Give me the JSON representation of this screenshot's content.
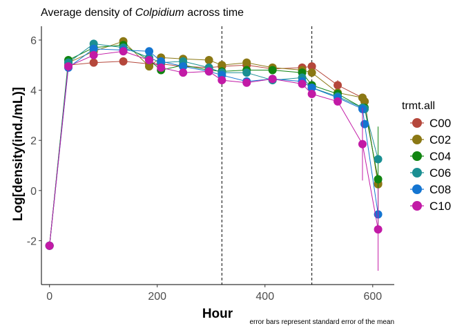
{
  "chart_data": {
    "type": "line",
    "title_parts": [
      {
        "text": "Average density of ",
        "style": "normal"
      },
      {
        "text": "Colpidium",
        "style": "italic"
      },
      {
        "text": " across time",
        "style": "normal"
      }
    ],
    "xlabel": "Hour",
    "ylabel": "Log[density(ind./mL)]",
    "caption": "error bars represent standard error of the mean",
    "xlim": [
      -15,
      640
    ],
    "ylim": [
      -3.75,
      6.55
    ],
    "xticks": [
      0,
      200,
      400,
      600
    ],
    "yticks": [
      -2,
      0,
      2,
      4,
      6
    ],
    "ytick_labels": [
      "-2",
      "0",
      "2",
      "4",
      "6"
    ],
    "grid": false,
    "vlines": [
      320,
      487
    ],
    "legend": {
      "title": "trmt.all",
      "position": "right"
    },
    "x": [
      0,
      35,
      82,
      137,
      185,
      207,
      248,
      296,
      320,
      366,
      414,
      469,
      487,
      535,
      581,
      585,
      610
    ],
    "series": [
      {
        "name": "C00",
        "color": "#b5473b",
        "values": [
          -2.2,
          5.0,
          5.1,
          5.15,
          5.05,
          5.05,
          4.95,
          4.9,
          4.95,
          5.0,
          4.85,
          4.9,
          4.95,
          4.2,
          3.7,
          3.55,
          0.28
        ],
        "err": [
          null,
          null,
          null,
          null,
          null,
          null,
          null,
          null,
          null,
          null,
          null,
          null,
          null,
          0.2,
          0.15,
          null,
          null
        ]
      },
      {
        "name": "C02",
        "color": "#8b7814",
        "values": [
          -2.2,
          5.1,
          5.55,
          5.95,
          4.95,
          5.3,
          5.25,
          5.2,
          5.0,
          5.1,
          4.9,
          4.8,
          4.7,
          3.9,
          3.7,
          3.55,
          0.25
        ],
        "err": [
          null,
          null,
          null,
          null,
          null,
          null,
          null,
          null,
          null,
          null,
          null,
          null,
          null,
          null,
          null,
          null,
          null
        ]
      },
      {
        "name": "C04",
        "color": "#118511",
        "values": [
          -2.2,
          5.2,
          5.7,
          5.8,
          5.2,
          4.8,
          5.0,
          4.8,
          4.75,
          4.8,
          4.8,
          4.7,
          4.2,
          3.85,
          3.3,
          3.3,
          0.45
        ],
        "err": [
          null,
          null,
          null,
          null,
          null,
          null,
          null,
          null,
          null,
          null,
          null,
          null,
          null,
          null,
          null,
          null,
          2.1
        ]
      },
      {
        "name": "C06",
        "color": "#1a8f92",
        "values": [
          -2.2,
          5.1,
          5.85,
          5.7,
          5.3,
          5.1,
          5.15,
          4.9,
          4.7,
          4.7,
          4.4,
          4.5,
          4.1,
          3.75,
          3.3,
          3.25,
          1.25
        ],
        "err": [
          null,
          null,
          null,
          null,
          null,
          null,
          null,
          null,
          null,
          null,
          null,
          null,
          null,
          null,
          null,
          null,
          null
        ]
      },
      {
        "name": "C08",
        "color": "#1475d1",
        "values": [
          -2.2,
          4.9,
          5.65,
          5.6,
          5.55,
          5.15,
          4.95,
          4.75,
          4.6,
          4.35,
          4.45,
          4.35,
          4.1,
          3.7,
          3.25,
          2.65,
          -0.95
        ],
        "err": [
          null,
          null,
          null,
          null,
          null,
          null,
          null,
          null,
          null,
          null,
          null,
          null,
          null,
          null,
          null,
          null,
          null
        ]
      },
      {
        "name": "C10",
        "color": "#c21aa6",
        "values": [
          -2.2,
          4.95,
          5.4,
          5.55,
          5.2,
          4.9,
          4.7,
          4.75,
          4.4,
          4.3,
          4.45,
          4.25,
          3.85,
          3.55,
          1.85,
          null,
          -1.55
        ],
        "err": [
          null,
          null,
          null,
          null,
          null,
          null,
          null,
          null,
          null,
          null,
          null,
          null,
          null,
          null,
          1.45,
          null,
          1.65
        ]
      }
    ]
  }
}
